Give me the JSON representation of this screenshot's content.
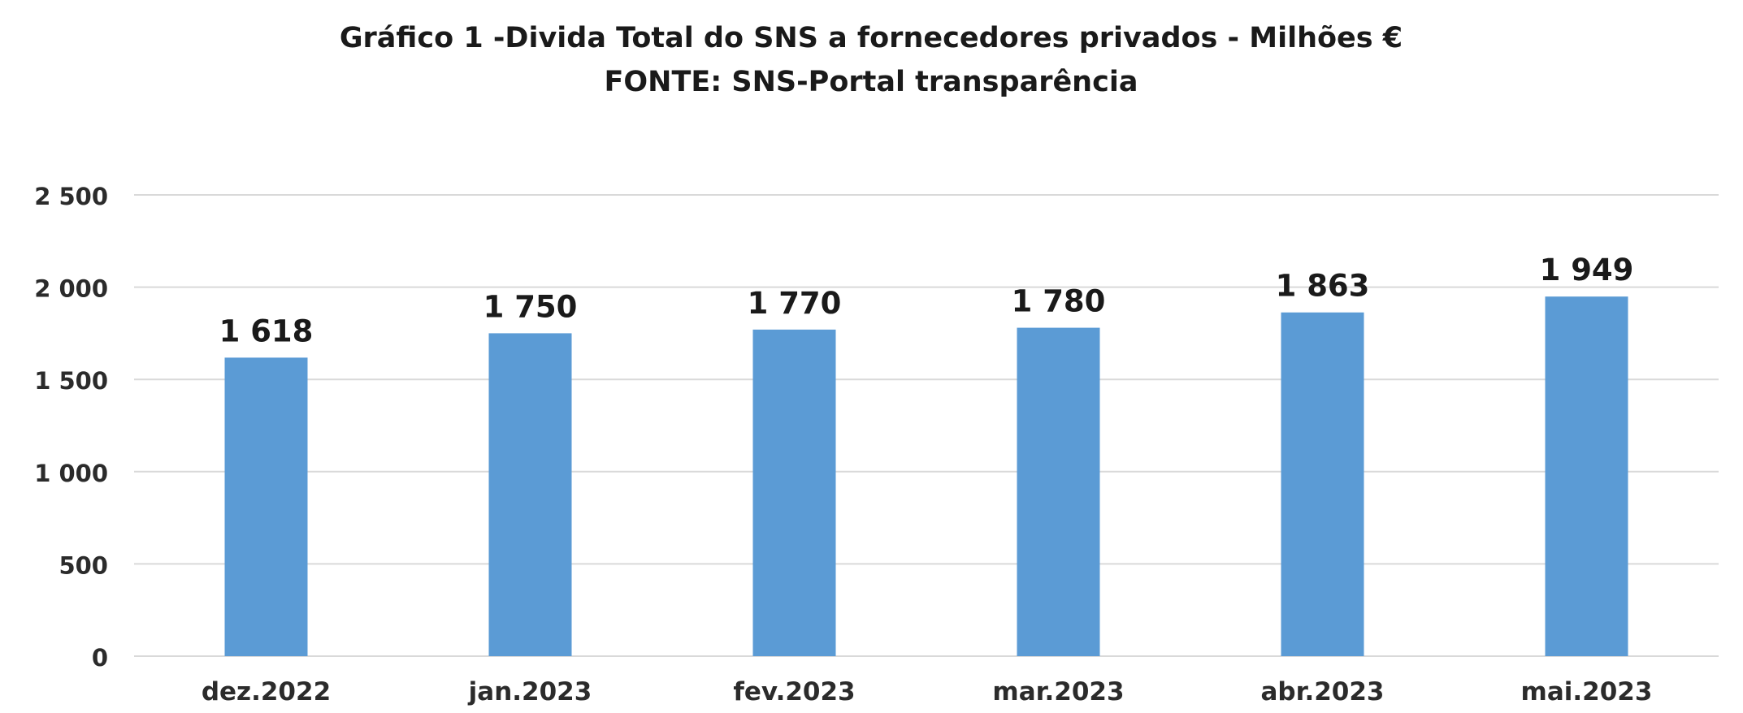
{
  "chart_data": {
    "type": "bar",
    "title": "Gráfico 1 -Divida Total do SNS a fornecedores privados - Milhões €",
    "subtitle": "FONTE: SNS-Portal transparência",
    "xlabel": "",
    "ylabel": "",
    "categories": [
      "dez.2022",
      "jan.2023",
      "fev.2023",
      "mar.2023",
      "abr.2023",
      "mai.2023"
    ],
    "values": [
      1618,
      1750,
      1770,
      1780,
      1863,
      1949
    ],
    "value_labels": [
      "1 618",
      "1 750",
      "1 770",
      "1 780",
      "1 863",
      "1 949"
    ],
    "ylim": [
      0,
      2500
    ],
    "yticks": [
      0,
      500,
      1000,
      1500,
      2000,
      2500
    ],
    "ytick_labels": [
      "0",
      "500",
      "1 000",
      "1 500",
      "2 000",
      "2 500"
    ],
    "grid": true,
    "legend": "none",
    "bar_color": "#5b9bd5",
    "grid_color": "#d9d9d9"
  }
}
